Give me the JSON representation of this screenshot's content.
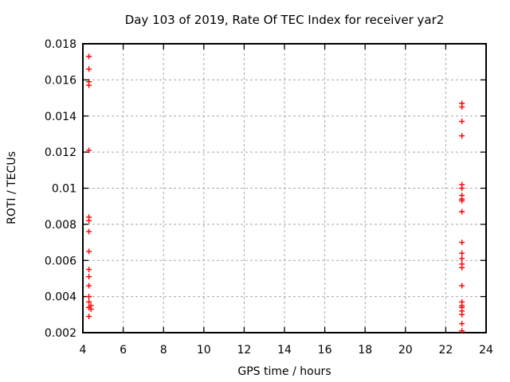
{
  "figure": {
    "background": "#ffffff",
    "border_color": "#000000",
    "grid_color": "#a8a8a8",
    "text_color": "#000000"
  },
  "chart_data": {
    "type": "scatter",
    "title": "Day 103 of 2019, Rate Of TEC Index for receiver yar2",
    "xlabel": "GPS time / hours",
    "ylabel": "ROTI / TECUs",
    "xlim": [
      4,
      24
    ],
    "ylim": [
      0.002,
      0.018
    ],
    "grid": true,
    "legend": "none",
    "marker": "plus",
    "marker_color": "#ff0000",
    "xticks": {
      "values": [
        4,
        6,
        8,
        10,
        12,
        14,
        16,
        18,
        20,
        22,
        24
      ],
      "labels": [
        "4",
        "6",
        "8",
        "10",
        "12",
        "14",
        "16",
        "18",
        "20",
        "22",
        "24"
      ]
    },
    "yticks": {
      "values": [
        0.002,
        0.004,
        0.006,
        0.008,
        0.01,
        0.012,
        0.014,
        0.016,
        0.018
      ],
      "labels": [
        "0.002",
        "0.004",
        "0.006",
        "0.008",
        "0.01",
        "0.012",
        "0.014",
        "0.016",
        "0.018"
      ]
    },
    "series": [
      {
        "name": "ROTI",
        "color": "#ff0000",
        "marker": "plus",
        "points": [
          [
            4.3,
            0.0173
          ],
          [
            4.3,
            0.0166
          ],
          [
            4.3,
            0.0159
          ],
          [
            4.3,
            0.0157
          ],
          [
            4.3,
            0.0121
          ],
          [
            4.3,
            0.0084
          ],
          [
            4.3,
            0.0082
          ],
          [
            4.3,
            0.0076
          ],
          [
            4.3,
            0.0065
          ],
          [
            4.3,
            0.0055
          ],
          [
            4.3,
            0.0051
          ],
          [
            4.3,
            0.0046
          ],
          [
            4.3,
            0.004
          ],
          [
            4.3,
            0.0037
          ],
          [
            4.4,
            0.0035
          ],
          [
            4.3,
            0.0034
          ],
          [
            4.4,
            0.0033
          ],
          [
            4.3,
            0.0029
          ],
          [
            22.8,
            0.0147
          ],
          [
            22.8,
            0.0145
          ],
          [
            22.8,
            0.0137
          ],
          [
            22.8,
            0.0129
          ],
          [
            22.8,
            0.0102
          ],
          [
            22.8,
            0.01
          ],
          [
            22.8,
            0.0096
          ],
          [
            22.8,
            0.0094
          ],
          [
            22.8,
            0.0093
          ],
          [
            22.8,
            0.0087
          ],
          [
            22.8,
            0.007
          ],
          [
            22.8,
            0.0064
          ],
          [
            22.8,
            0.0061
          ],
          [
            22.8,
            0.0058
          ],
          [
            22.8,
            0.0056
          ],
          [
            22.8,
            0.0046
          ],
          [
            22.8,
            0.0037
          ],
          [
            22.8,
            0.0035
          ],
          [
            22.8,
            0.0034
          ],
          [
            22.8,
            0.0032
          ],
          [
            22.8,
            0.003
          ],
          [
            22.8,
            0.0025
          ],
          [
            22.8,
            0.0021
          ]
        ]
      }
    ]
  }
}
